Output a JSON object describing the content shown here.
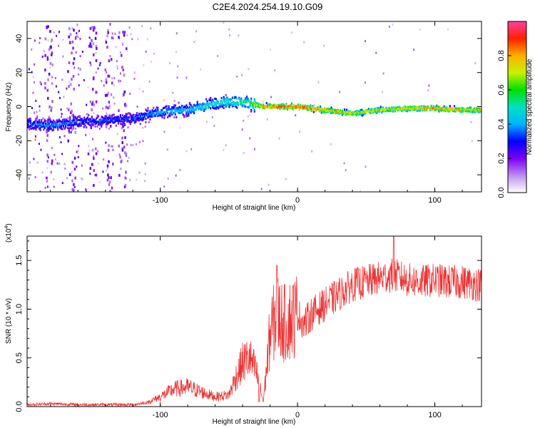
{
  "title": "C2E4.2024.254.19.10.G09",
  "chart_data": [
    {
      "type": "heatmap",
      "xlabel": "Height of straight line (km)",
      "ylabel": "Frequency (Hz)",
      "xlim": [
        -197,
        134
      ],
      "ylim": [
        -50,
        50
      ],
      "xticks": [
        -100,
        0,
        100
      ],
      "yticks": [
        -40,
        -20,
        0,
        20,
        40
      ],
      "colorbar": {
        "label": "Normalized spectral amplitude",
        "range": [
          0,
          1
        ],
        "ticks": [
          "0.0",
          "0.2",
          "0.4",
          "0.6",
          "0.8"
        ],
        "tick_values": [
          0,
          0.2,
          0.4,
          0.6,
          0.8
        ]
      },
      "ridge": {
        "x": [
          -197,
          -180,
          -160,
          -140,
          -120,
          -100,
          -80,
          -60,
          -45,
          -35,
          -25,
          -10,
          0,
          20,
          40,
          60,
          80,
          100,
          120,
          134
        ],
        "freq": [
          -10,
          -11,
          -9,
          -8,
          -7,
          -3,
          -2,
          2,
          3,
          2,
          0,
          0,
          0,
          -2,
          -4,
          -2,
          -1,
          -1,
          -2,
          -2
        ],
        "amplitude": [
          0.35,
          0.38,
          0.35,
          0.33,
          0.33,
          0.42,
          0.45,
          0.5,
          0.55,
          0.6,
          0.85,
          0.92,
          0.95,
          0.85,
          0.75,
          0.75,
          0.8,
          0.85,
          0.8,
          0.75
        ]
      }
    },
    {
      "type": "line",
      "xlabel": "Height of straight line (km)",
      "ylabel": "SNR (10 * v/v)",
      "yscale_label": "(x10",
      "yscale_exp": "4",
      "yscale_close": ")",
      "xlim": [
        -197,
        134
      ],
      "ylim": [
        0,
        1.75
      ],
      "xticks": [
        -100,
        0,
        100
      ],
      "yticks": [
        "0.0",
        "0.5",
        "1.0",
        "1.5"
      ],
      "ytick_values": [
        0,
        0.5,
        1.0,
        1.5
      ],
      "color": "#ee3333",
      "series": [
        {
          "name": "SNR",
          "x": [
            -197,
            -180,
            -160,
            -140,
            -120,
            -110,
            -100,
            -90,
            -80,
            -70,
            -60,
            -50,
            -45,
            -40,
            -35,
            -30,
            -25,
            -20,
            -15,
            -10,
            -5,
            0,
            5,
            10,
            20,
            30,
            40,
            50,
            60,
            70,
            80,
            90,
            100,
            110,
            120,
            134
          ],
          "y": [
            0.02,
            0.03,
            0.02,
            0.02,
            0.02,
            0.04,
            0.1,
            0.18,
            0.2,
            0.15,
            0.1,
            0.12,
            0.3,
            0.45,
            0.5,
            0.35,
            0.05,
            0.75,
            0.95,
            0.85,
            0.9,
            0.95,
            0.85,
            0.95,
            1.05,
            1.15,
            1.25,
            1.28,
            1.32,
            1.35,
            1.3,
            1.28,
            1.3,
            1.28,
            1.28,
            1.25
          ]
        }
      ],
      "spikes": [
        {
          "x": -15,
          "y": 1.45
        },
        {
          "x": 70,
          "y": 1.75
        },
        {
          "x": -28,
          "y": 0.05
        }
      ]
    }
  ]
}
